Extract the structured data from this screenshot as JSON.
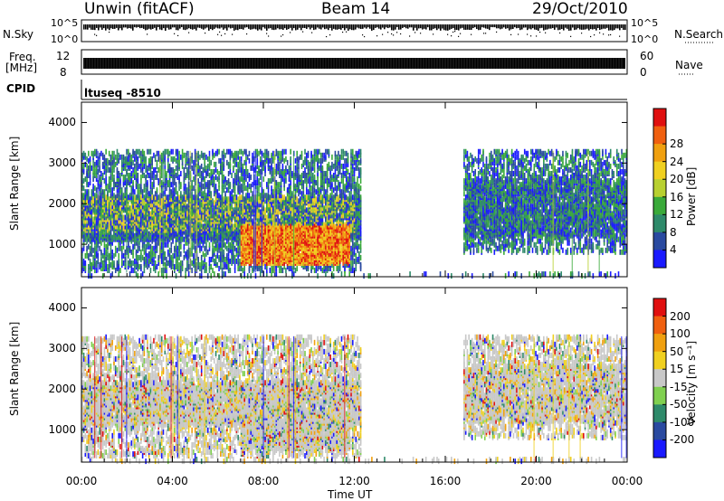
{
  "header": {
    "station": "Unwin (fitACF)",
    "beam": "Beam 14",
    "date": "29/Oct/2010"
  },
  "top_panels": {
    "nsky_label": "N.Sky",
    "nsky_ticks": [
      "10^5",
      "10^0"
    ],
    "nsearch_label": "N.Search",
    "freq_label_1": "Freq.",
    "freq_label_2": "[MHz]",
    "freq_ticks": [
      "12",
      "8"
    ],
    "nave_label": "Nave",
    "nave_ticks": [
      "60",
      "0"
    ],
    "cpid_label": "CPID",
    "cpid_value": "ltuseq -8510"
  },
  "chart_data": [
    {
      "type": "heatmap",
      "name": "power",
      "ylabel": "Slant Range [km]",
      "yticks": [
        1000,
        2000,
        3000,
        4000
      ],
      "ylim": [
        200,
        4500
      ],
      "xlim": [
        0,
        24
      ],
      "xticks": [
        "00:00",
        "04:00",
        "08:00",
        "12:00",
        "16:00",
        "20:00",
        "00:00"
      ],
      "colorbar": {
        "label": "Power [dB]",
        "ticks": [
          "4",
          "8",
          "12",
          "16",
          "20",
          "24",
          "28"
        ],
        "colors": [
          "#1a1aff",
          "#2a4aa0",
          "#2e8a6a",
          "#3aaa3a",
          "#b8d030",
          "#f0d020",
          "#f0a010",
          "#f06010",
          "#e01010"
        ]
      },
      "regions": [
        {
          "t0": 0.0,
          "t1": 5.0,
          "r0": 300,
          "r1": 3300,
          "level": "low-mid"
        },
        {
          "t0": 5.0,
          "t1": 12.5,
          "r0": 1200,
          "r1": 2800,
          "level": "mid"
        },
        {
          "t0": 7.0,
          "t1": 12.0,
          "r0": 400,
          "r1": 1600,
          "level": "high"
        },
        {
          "t0": 17.0,
          "t1": 24.0,
          "r0": 700,
          "r1": 3300,
          "level": "low-mid"
        }
      ]
    },
    {
      "type": "heatmap",
      "name": "velocity",
      "ylabel": "Slant Range [km]",
      "yticks": [
        1000,
        2000,
        3000,
        4000
      ],
      "ylim": [
        200,
        4500
      ],
      "xlim": [
        0,
        24
      ],
      "xticks": [
        "00:00",
        "04:00",
        "08:00",
        "12:00",
        "16:00",
        "20:00",
        "00:00"
      ],
      "xlabel": "Time UT",
      "colorbar": {
        "label": "Velocity [m s⁻¹]",
        "ticks": [
          "200",
          "100",
          "50",
          "15",
          "-15",
          "-50",
          "-100",
          "-200"
        ],
        "colors": [
          "#1a1aff",
          "#2a4aa0",
          "#2e8a6a",
          "#80d050",
          "#c8c8c8",
          "#f0d020",
          "#f0a010",
          "#f06010",
          "#e01010"
        ]
      }
    }
  ]
}
